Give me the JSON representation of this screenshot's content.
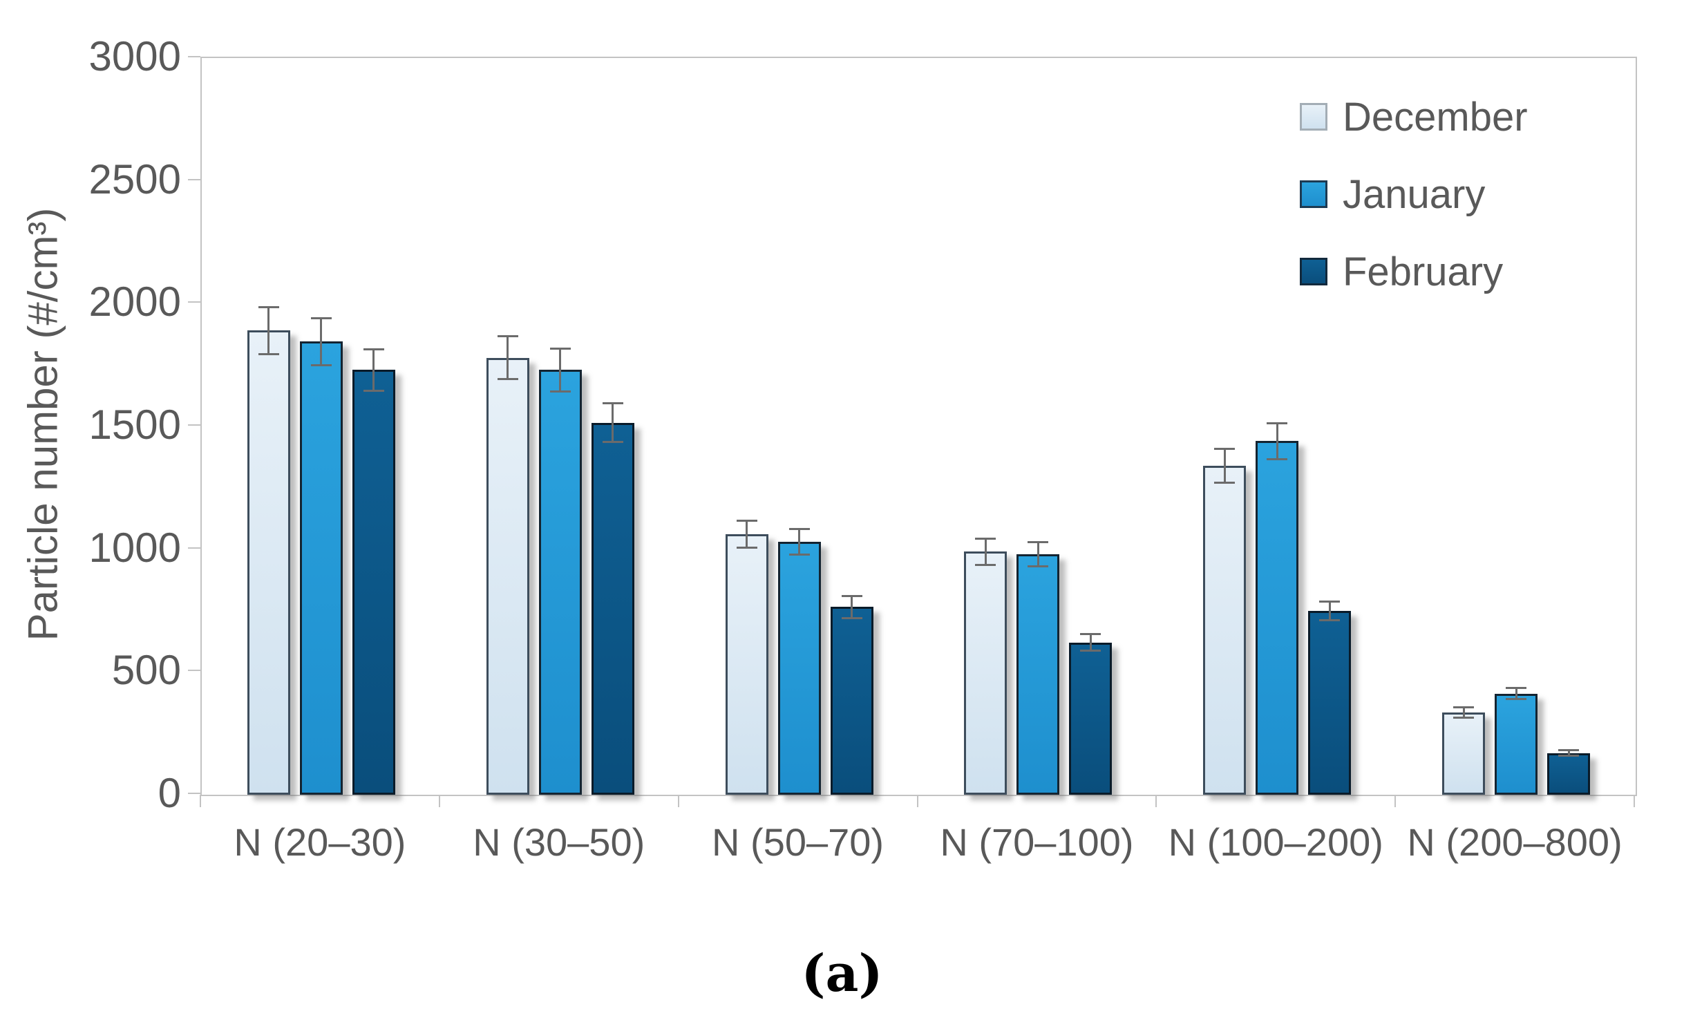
{
  "figure": {
    "caption": "(a)",
    "background": "#ffffff"
  },
  "chart_data": {
    "type": "bar",
    "title": "",
    "ylabel": "Particle number (#/cm³)",
    "xlabel": "",
    "ylim": [
      0,
      3000
    ],
    "yticks": [
      0,
      500,
      1000,
      1500,
      2000,
      2500,
      3000
    ],
    "grid": false,
    "legend_position": "top-right",
    "categories": [
      "N (20–30)",
      "N (30–50)",
      "N (50–70)",
      "N (70–100)",
      "N (100–200)",
      "N (200–800)"
    ],
    "series": [
      {
        "name": "December",
        "fill_top": "#e8f1f8",
        "fill_bottom": "#cfe1ef",
        "border": "#3d4d5c",
        "swatch_border": "#a3adb5",
        "values": [
          1890,
          1780,
          1060,
          990,
          1340,
          335
        ],
        "errors": [
          95,
          88,
          55,
          53,
          68,
          20
        ]
      },
      {
        "name": "January",
        "fill_top": "#2ba3de",
        "fill_bottom": "#1e8fce",
        "border": "#142431",
        "swatch_border": "#1d3a52",
        "values": [
          1845,
          1730,
          1030,
          980,
          1440,
          412
        ],
        "errors": [
          95,
          88,
          53,
          50,
          73,
          22
        ]
      },
      {
        "name": "February",
        "fill_top": "#0f6094",
        "fill_bottom": "#0a4e7c",
        "border": "#0a1b29",
        "swatch_border": "#12293c",
        "values": [
          1730,
          1515,
          765,
          620,
          750,
          170
        ],
        "errors": [
          85,
          78,
          45,
          33,
          38,
          12
        ]
      }
    ],
    "axis_color": "#c3c3c3",
    "text_color": "#595959",
    "error_bar_color": "#6b6b6b"
  }
}
